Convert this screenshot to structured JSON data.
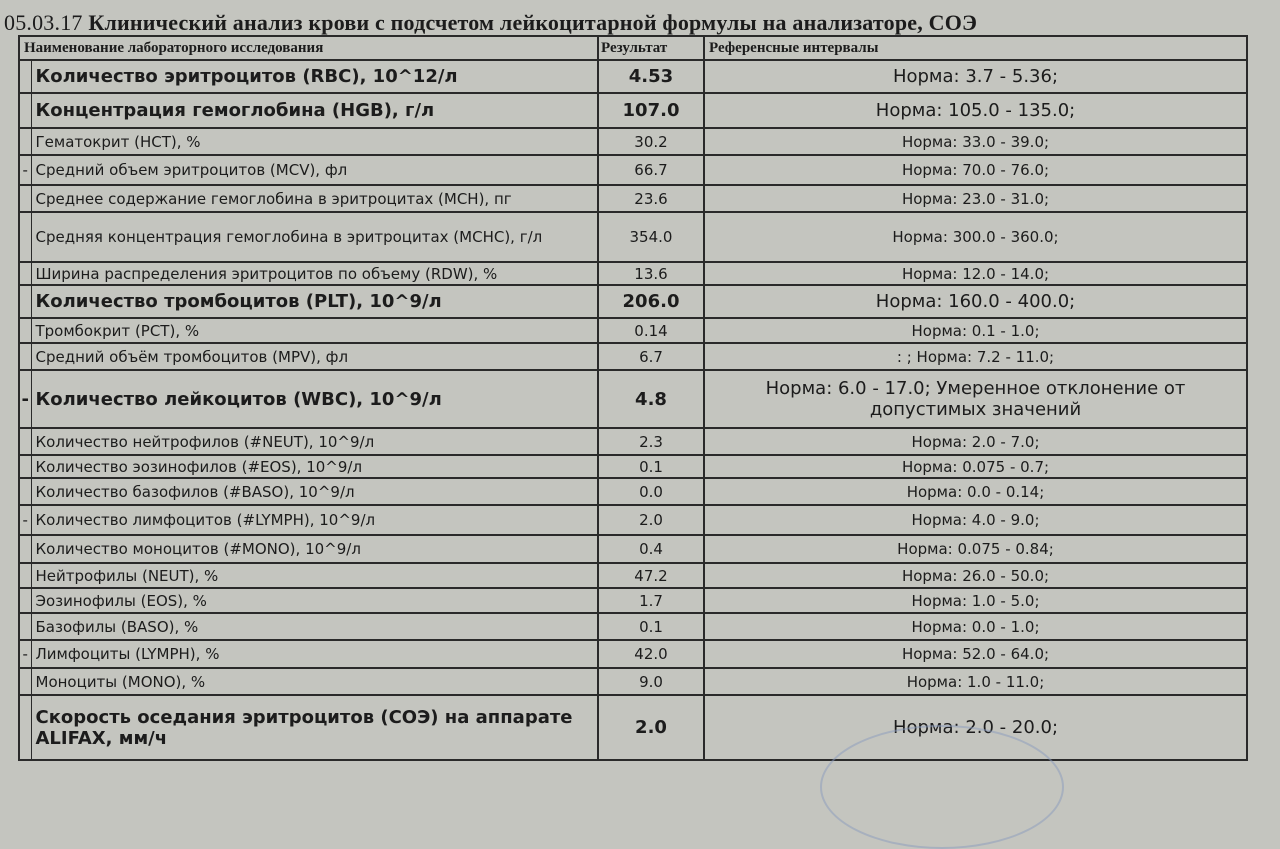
{
  "document": {
    "title_date": "05.03.17",
    "title_text": "Клинический анализ крови с подсчетом лейкоцитарной формулы на анализаторе, СОЭ"
  },
  "table": {
    "headers": {
      "name": "Наименование лабораторного исследования",
      "result": "Результат",
      "reference": "Референсные интервалы"
    },
    "rows": [
      {
        "mark": "",
        "name": "Количество эритроцитов (RBC), 10^12/л",
        "result": "4.53",
        "reference": "Норма:  3.7 - 5.36;",
        "bold": true
      },
      {
        "mark": "",
        "name": "Концентрация гемоглобина (HGB), г/л",
        "result": "107.0",
        "reference": "Норма:  105.0 - 135.0;",
        "bold": true
      },
      {
        "mark": "",
        "name": "Гематокрит (HCT), %",
        "result": "30.2",
        "reference": "Норма:  33.0 - 39.0;",
        "bold": false
      },
      {
        "mark": "-",
        "name": "Средний объем эритроцитов (MCV), фл",
        "result": "66.7",
        "reference": "Норма:  70.0 - 76.0;",
        "bold": false
      },
      {
        "mark": "",
        "name": "Среднее содержание гемоглобина в эритроцитах (MCH), пг",
        "result": "23.6",
        "reference": "Норма:  23.0 - 31.0;",
        "bold": false
      },
      {
        "mark": "",
        "name": "Средняя концентрация гемоглобина в эритроцитах (MCHC), г/л",
        "result": "354.0",
        "reference": "Норма:  300.0 - 360.0;",
        "bold": false
      },
      {
        "mark": "",
        "name": "Ширина распределения эритроцитов по объему (RDW), %",
        "result": "13.6",
        "reference": "Норма:  12.0 - 14.0;",
        "bold": false
      },
      {
        "mark": "",
        "name": "Количество тромбоцитов (PLT), 10^9/л",
        "result": "206.0",
        "reference": "Норма:  160.0 - 400.0;",
        "bold": true
      },
      {
        "mark": "",
        "name": "Тромбокрит (PCT), %",
        "result": "0.14",
        "reference": "Норма:  0.1 - 1.0;",
        "bold": false
      },
      {
        "mark": "",
        "name": "Средний объём тромбоцитов (MPV), фл",
        "result": "6.7",
        "reference": ":  ;  Норма:  7.2 - 11.0;",
        "bold": false
      },
      {
        "mark": "-",
        "name": "Количество лейкоцитов (WBC), 10^9/л",
        "result": "4.8",
        "reference": "Норма:  6.0 - 17.0;  Умеренное отклонение от допустимых значений",
        "bold": true
      },
      {
        "mark": "",
        "name": "Количество нейтрофилов (#NEUT), 10^9/л",
        "result": "2.3",
        "reference": "Норма:  2.0 - 7.0;",
        "bold": false
      },
      {
        "mark": "",
        "name": "Количество эозинофилов (#EOS), 10^9/л",
        "result": "0.1",
        "reference": "Норма:  0.075 - 0.7;",
        "bold": false
      },
      {
        "mark": "",
        "name": "Количество базофилов (#BASO), 10^9/л",
        "result": "0.0",
        "reference": "Норма:  0.0 - 0.14;",
        "bold": false
      },
      {
        "mark": "-",
        "name": "Количество лимфоцитов (#LYMPH), 10^9/л",
        "result": "2.0",
        "reference": "Норма:  4.0 - 9.0;",
        "bold": false
      },
      {
        "mark": "",
        "name": "Количество моноцитов (#MONO), 10^9/л",
        "result": "0.4",
        "reference": "Норма:  0.075 - 0.84;",
        "bold": false
      },
      {
        "mark": "",
        "name": "Нейтрофилы (NEUT), %",
        "result": "47.2",
        "reference": "Норма:  26.0 - 50.0;",
        "bold": false
      },
      {
        "mark": "",
        "name": "Эозинофилы (EOS), %",
        "result": "1.7",
        "reference": "Норма:  1.0 - 5.0;",
        "bold": false
      },
      {
        "mark": "",
        "name": "Базофилы (BASO), %",
        "result": "0.1",
        "reference": "Норма:  0.0 - 1.0;",
        "bold": false
      },
      {
        "mark": "-",
        "name": "Лимфоциты (LYMPH), %",
        "result": "42.0",
        "reference": "Норма:  52.0 - 64.0;",
        "bold": false
      },
      {
        "mark": "",
        "name": "Моноциты (MONO), %",
        "result": "9.0",
        "reference": "Норма:  1.0 - 11.0;",
        "bold": false
      },
      {
        "mark": "",
        "name": "Скорость оседания эритроцитов (СОЭ) на аппарате ALIFAX, мм/ч",
        "result": "2.0",
        "reference": "Норма:  2.0 - 20.0;",
        "bold": true
      }
    ]
  }
}
